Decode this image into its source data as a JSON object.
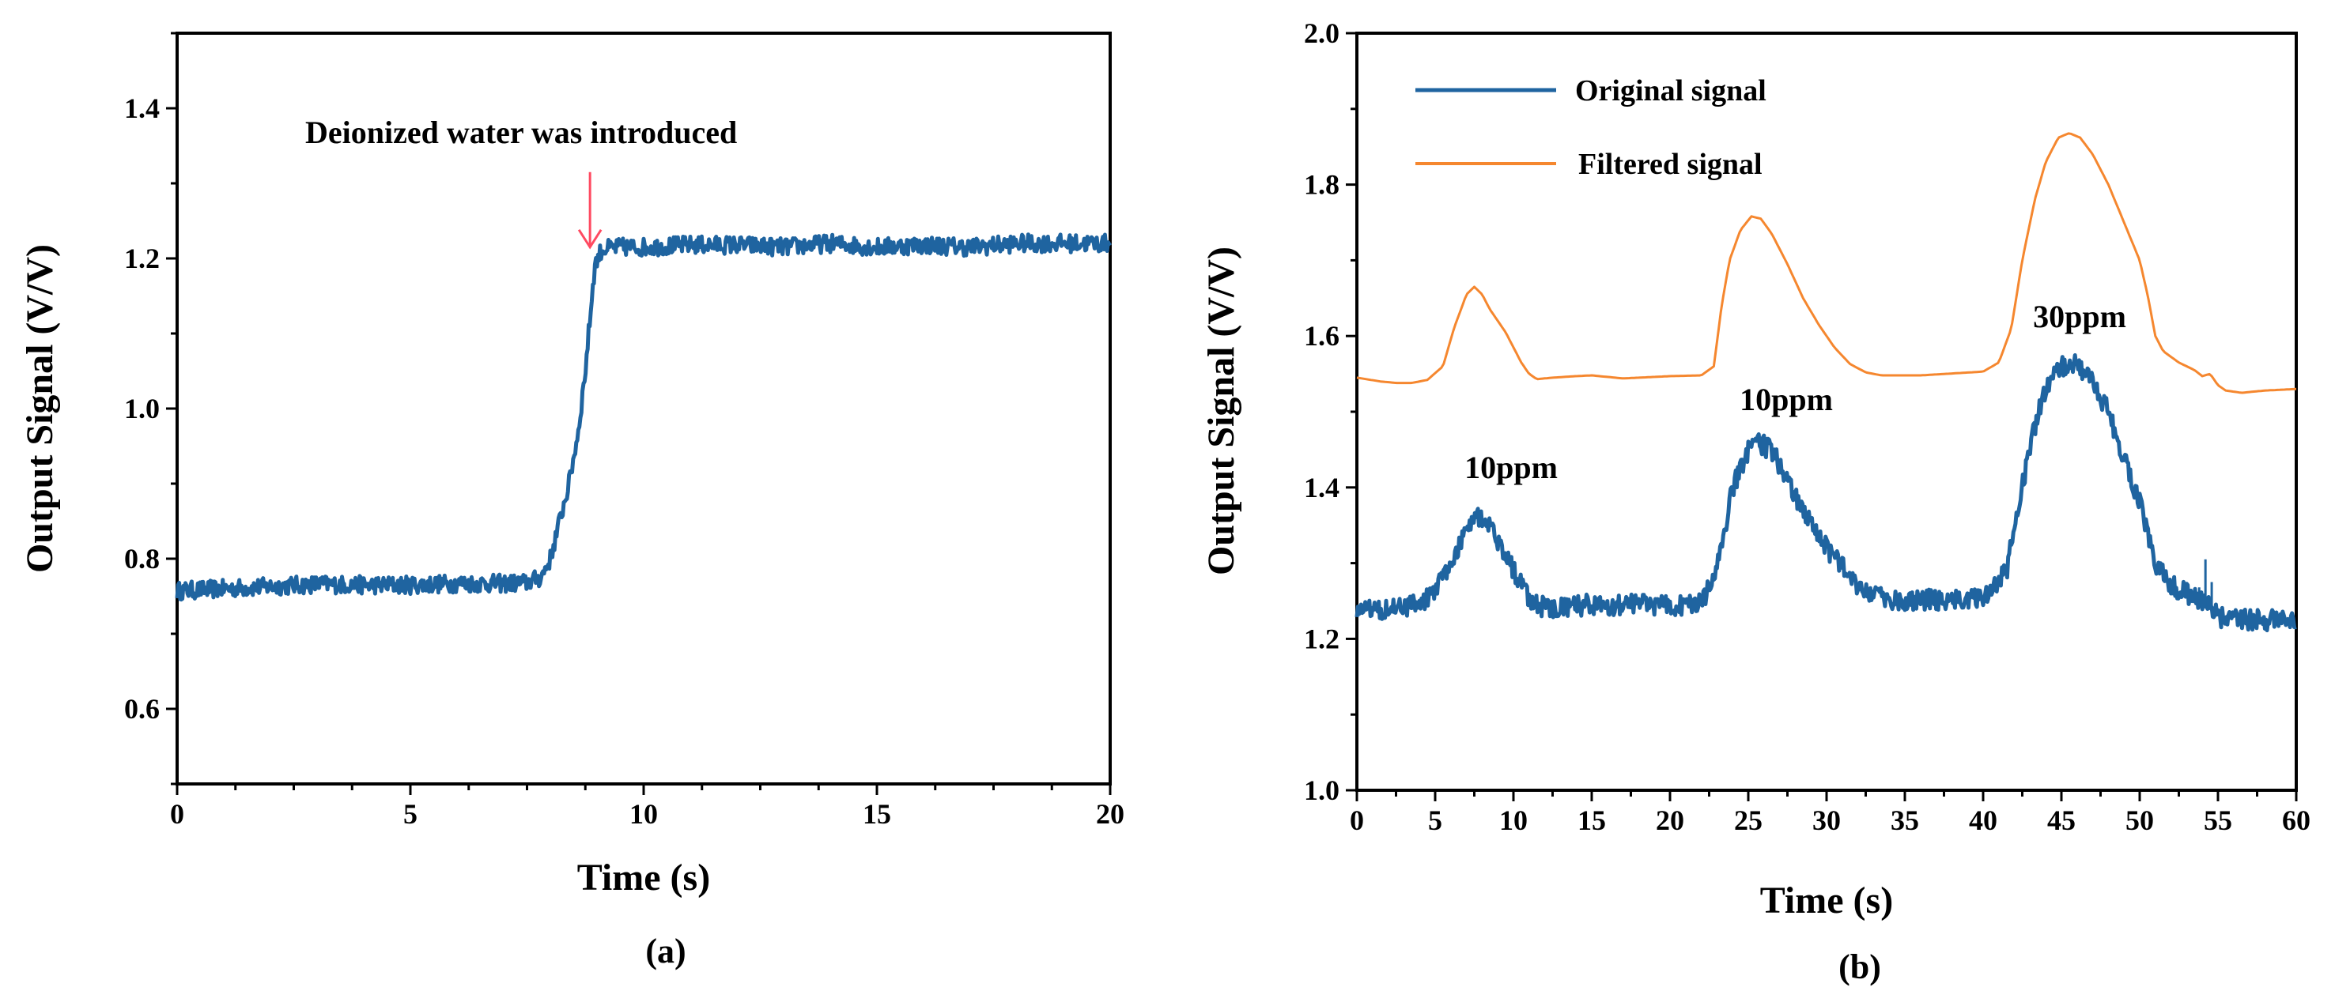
{
  "colors": {
    "original": "#1f64a0",
    "filtered": "#f5872f",
    "arrow": "#ff4a61",
    "axis": "#000000"
  },
  "chart_data": [
    {
      "type": "line",
      "panel_label": "(a)",
      "xlabel": "Time (s)",
      "ylabel": "Output Signal  (V/V)",
      "xlim": [
        0,
        20
      ],
      "ylim": [
        0.5,
        1.5
      ],
      "xticks": [
        0,
        5,
        10,
        15,
        20
      ],
      "yticks": [
        0.6,
        0.8,
        1.0,
        1.2,
        1.4
      ],
      "xticks_text": [
        "0",
        "5",
        "10",
        "15",
        "20"
      ],
      "yticks_text": [
        "0.6",
        "0.8",
        "1.0",
        "1.2",
        "1.4"
      ],
      "grid": false,
      "series": [
        {
          "name": "Output signal",
          "color_key": "original",
          "noise": 0.012,
          "width": 5,
          "x": [
            0,
            1,
            2,
            3,
            4,
            5,
            6,
            7,
            7.5,
            7.8,
            8.0,
            8.2,
            8.4,
            8.6,
            8.75,
            8.85,
            8.95,
            9.1,
            9.5,
            10,
            11,
            12,
            13,
            14,
            15,
            16,
            17,
            18,
            19,
            20
          ],
          "y": [
            0.757,
            0.76,
            0.763,
            0.766,
            0.765,
            0.765,
            0.767,
            0.767,
            0.768,
            0.775,
            0.8,
            0.85,
            0.9,
            0.97,
            1.05,
            1.12,
            1.19,
            1.212,
            1.215,
            1.215,
            1.218,
            1.218,
            1.215,
            1.22,
            1.215,
            1.218,
            1.215,
            1.22,
            1.22,
            1.22
          ]
        }
      ],
      "annotations": [
        {
          "text": "Deionized water was introduced",
          "x": 4.8,
          "y": 1.35
        }
      ],
      "arrow": {
        "x": 8.85,
        "y_from": 1.315,
        "y_to": 1.215
      }
    },
    {
      "type": "line",
      "panel_label": "(b)",
      "xlabel": "Time (s)",
      "ylabel": "Output Signal  (V/V)",
      "xlim": [
        0,
        60
      ],
      "ylim": [
        1.0,
        2.0
      ],
      "xticks": [
        0,
        5,
        10,
        15,
        20,
        25,
        30,
        35,
        40,
        45,
        50,
        55,
        60
      ],
      "yticks": [
        1.0,
        1.2,
        1.4,
        1.6,
        1.8,
        2.0
      ],
      "xticks_text": [
        "0",
        "5",
        "10",
        "15",
        "20",
        "25",
        "30",
        "35",
        "40",
        "45",
        "50",
        "55",
        "60"
      ],
      "yticks_text": [
        "1.0",
        "1.2",
        "1.4",
        "1.6",
        "1.8",
        "2.0"
      ],
      "grid": false,
      "legend": [
        "Original signal",
        "Filtered signal"
      ],
      "legend_position": "top-left",
      "series": [
        {
          "name": "Original signal",
          "color_key": "original",
          "noise": 0.014,
          "width": 5,
          "x": [
            0,
            2,
            4,
            5,
            6,
            7,
            7.5,
            8,
            9,
            10,
            11,
            12,
            15,
            20,
            22,
            23,
            24,
            25,
            25.5,
            26.5,
            28,
            30,
            32,
            33,
            35,
            40,
            41.5,
            42.5,
            43.5,
            44.5,
            45.5,
            46.5,
            48,
            50,
            51,
            52,
            53,
            54,
            55,
            56,
            58,
            60
          ],
          "y": [
            1.24,
            1.24,
            1.245,
            1.265,
            1.3,
            1.345,
            1.365,
            1.36,
            1.33,
            1.29,
            1.255,
            1.24,
            1.245,
            1.245,
            1.245,
            1.29,
            1.4,
            1.45,
            1.46,
            1.45,
            1.39,
            1.32,
            1.27,
            1.255,
            1.25,
            1.255,
            1.29,
            1.4,
            1.5,
            1.55,
            1.565,
            1.555,
            1.5,
            1.38,
            1.3,
            1.27,
            1.26,
            1.25,
            1.23,
            1.225,
            1.225,
            1.225
          ]
        },
        {
          "name": "Filtered signal",
          "color_key": "filtered",
          "noise": 0,
          "width": 3,
          "x": [
            0,
            1.5,
            2.5,
            3.5,
            4.5,
            5.5,
            6.2,
            7,
            7.5,
            8,
            8.5,
            9,
            9.5,
            10,
            10.5,
            11,
            11.5,
            12.5,
            14,
            15,
            17,
            20,
            22,
            22.8,
            23.3,
            23.8,
            24.5,
            25.2,
            25.8,
            26.5,
            27.5,
            28.5,
            29.5,
            30.5,
            31.5,
            32.5,
            33.5,
            36,
            40,
            41,
            41.8,
            42.5,
            43.3,
            44,
            44.8,
            45.5,
            46.2,
            47,
            48,
            49,
            50,
            50.5,
            51,
            51.5,
            52.5,
            53.5,
            54,
            54.5,
            55,
            55.5,
            56.5,
            58,
            60
          ],
          "y": [
            1.545,
            1.54,
            1.538,
            1.538,
            1.542,
            1.56,
            1.61,
            1.655,
            1.665,
            1.655,
            1.635,
            1.62,
            1.605,
            1.585,
            1.565,
            1.55,
            1.543,
            1.545,
            1.547,
            1.548,
            1.544,
            1.547,
            1.548,
            1.56,
            1.64,
            1.7,
            1.74,
            1.758,
            1.755,
            1.735,
            1.695,
            1.65,
            1.615,
            1.585,
            1.563,
            1.552,
            1.548,
            1.548,
            1.553,
            1.565,
            1.61,
            1.7,
            1.78,
            1.83,
            1.862,
            1.868,
            1.862,
            1.84,
            1.8,
            1.75,
            1.7,
            1.655,
            1.6,
            1.58,
            1.565,
            1.555,
            1.547,
            1.55,
            1.535,
            1.528,
            1.525,
            1.528,
            1.53
          ]
        }
      ],
      "annotations": [
        {
          "text": "10ppm",
          "x": 9.6,
          "y": 1.415
        },
        {
          "text": "10ppm",
          "x": 27.2,
          "y": 1.51
        },
        {
          "text": "30ppm",
          "x": 45.8,
          "y": 1.615
        }
      ]
    }
  ]
}
